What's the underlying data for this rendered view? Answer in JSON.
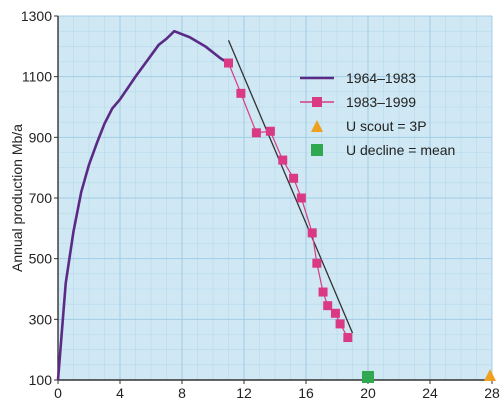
{
  "chart_data": {
    "type": "line",
    "title": "",
    "xlabel": "",
    "ylabel": "Annual production Mb/a",
    "xlim": [
      0,
      28
    ],
    "ylim": [
      100,
      1300
    ],
    "x_ticks": [
      0,
      4,
      8,
      12,
      16,
      20,
      24,
      28
    ],
    "y_ticks": [
      100,
      300,
      500,
      700,
      900,
      1100,
      1300
    ],
    "grid": true,
    "legend_position": "top-right",
    "colors": {
      "background": "#cfe8f3",
      "grid": "#9fcbe6",
      "series_1964_1983": "#5b2a86",
      "series_1983_1999": "#d93a83",
      "trend_line": "#333333",
      "u_scout": "#f0a020",
      "u_decline": "#2fa84f"
    },
    "series": [
      {
        "name": "1964–1983",
        "kind": "line",
        "points": [
          [
            0,
            100
          ],
          [
            0.5,
            420
          ],
          [
            1,
            590
          ],
          [
            1.5,
            720
          ],
          [
            2,
            810
          ],
          [
            2.5,
            880
          ],
          [
            3,
            945
          ],
          [
            3.5,
            995
          ],
          [
            4,
            1025
          ],
          [
            5,
            1100
          ],
          [
            6,
            1170
          ],
          [
            6.5,
            1205
          ],
          [
            7,
            1225
          ],
          [
            7.5,
            1250
          ],
          [
            8.5,
            1230
          ],
          [
            9.5,
            1200
          ],
          [
            10.5,
            1160
          ],
          [
            11,
            1145
          ]
        ]
      },
      {
        "name": "1983–1999",
        "kind": "line-with-square-markers",
        "points": [
          [
            11,
            1145
          ],
          [
            11.8,
            1045
          ],
          [
            12.8,
            915
          ],
          [
            13.7,
            920
          ],
          [
            14.5,
            825
          ],
          [
            15.2,
            765
          ],
          [
            15.7,
            700
          ],
          [
            16.4,
            585
          ],
          [
            16.7,
            485
          ],
          [
            17.1,
            390
          ],
          [
            17.4,
            345
          ],
          [
            17.9,
            320
          ],
          [
            18.2,
            285
          ],
          [
            18.7,
            240
          ]
        ]
      },
      {
        "name": "",
        "kind": "trend-line",
        "points": [
          [
            11,
            1220
          ],
          [
            19,
            255
          ]
        ]
      },
      {
        "name": "U scout = 3P",
        "kind": "triangle-marker",
        "points": [
          [
            28,
            110
          ]
        ]
      },
      {
        "name": "U decline = mean",
        "kind": "square-marker",
        "points": [
          [
            20,
            110
          ]
        ]
      }
    ],
    "legend": [
      {
        "label": "1964–1983"
      },
      {
        "label": "1983–1999"
      },
      {
        "label": "U scout = 3P"
      },
      {
        "label": "U decline = mean"
      }
    ]
  }
}
